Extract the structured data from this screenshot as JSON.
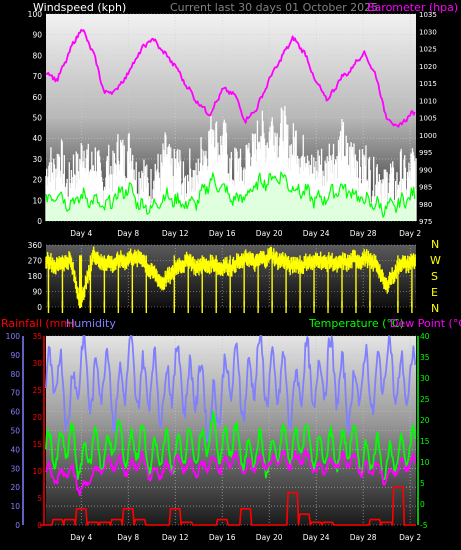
{
  "header": {
    "windspeed_label": "Windspeed (kph)",
    "title": "Current last 30 days 01 October 2025",
    "barometer_label": "Barometer (hpa)"
  },
  "colors": {
    "wind": "#ffffff",
    "gust": "#ffffff",
    "wind_avg": "#00ff00",
    "barometer": "#ff00ff",
    "direction": "#ffff00",
    "rainfall": "#ff0000",
    "humidity": "#8080ff",
    "temperature": "#00ff00",
    "dewpoint": "#ff00ff",
    "title": "#808080"
  },
  "legend": {
    "rainfall": "Rainfall (mm)",
    "humidity": "Humidity",
    "temperature": "Temperature (°C)",
    "dewpoint": "Dew Point (°C)"
  },
  "compass": [
    "N",
    "W",
    "S",
    "E",
    "N"
  ],
  "chart_data": [
    {
      "type": "line",
      "name": "wind",
      "x_tick_labels": [
        "Day 4",
        "Day 8",
        "Day 12",
        "Day 16",
        "Day 20",
        "Day 24",
        "Day 28",
        "Day 2"
      ],
      "x_range_days": [
        0,
        31.5
      ],
      "ylabel_left": "Windspeed (kph)",
      "ylabel_right": "Barometer (hpa)",
      "ylim_left": [
        0,
        100
      ],
      "ylim_right": [
        975,
        1035
      ],
      "y_ticks_left": [
        0,
        10,
        20,
        30,
        40,
        50,
        60,
        70,
        80,
        90,
        100
      ],
      "y_ticks_right": [
        975,
        980,
        985,
        990,
        995,
        1000,
        1005,
        1010,
        1015,
        1020,
        1025,
        1030,
        1035
      ],
      "grid": true,
      "series": [
        {
          "name": "Windspeed",
          "axis": "left",
          "x": [
            0,
            1,
            2,
            3,
            4,
            5,
            6,
            7,
            8,
            9,
            10,
            11,
            12,
            13,
            14,
            15,
            16,
            17,
            18,
            19,
            20,
            21,
            22,
            23,
            24,
            25,
            26,
            27,
            28,
            29,
            30,
            31
          ],
          "values": [
            22,
            30,
            18,
            32,
            28,
            20,
            30,
            34,
            22,
            18,
            30,
            26,
            20,
            24,
            44,
            38,
            24,
            28,
            40,
            42,
            44,
            36,
            34,
            24,
            28,
            36,
            32,
            26,
            22,
            18,
            20,
            24
          ]
        },
        {
          "name": "Wind average",
          "axis": "left",
          "x": [
            0,
            1,
            2,
            3,
            4,
            5,
            6,
            7,
            8,
            9,
            10,
            11,
            12,
            13,
            14,
            15,
            16,
            17,
            18,
            19,
            20,
            21,
            22,
            23,
            24,
            25,
            26,
            27,
            28,
            29,
            30,
            31
          ],
          "values": [
            10,
            14,
            8,
            12,
            10,
            6,
            12,
            16,
            8,
            6,
            12,
            10,
            8,
            10,
            20,
            16,
            10,
            12,
            18,
            20,
            22,
            16,
            14,
            10,
            12,
            16,
            14,
            10,
            8,
            6,
            8,
            12
          ]
        },
        {
          "name": "Barometer",
          "axis": "right",
          "x": [
            0,
            1,
            2,
            3,
            4,
            5,
            6,
            7,
            8,
            9,
            10,
            11,
            12,
            13,
            14,
            15,
            16,
            17,
            18,
            19,
            20,
            21,
            22,
            23,
            24,
            25,
            26,
            27,
            28,
            29,
            30,
            31
          ],
          "values": [
            1018,
            1016,
            1024,
            1031,
            1024,
            1012,
            1013,
            1018,
            1024,
            1028,
            1024,
            1020,
            1014,
            1009,
            1006,
            1013,
            1012,
            1004,
            1008,
            1016,
            1022,
            1028,
            1024,
            1015,
            1010,
            1016,
            1019,
            1024,
            1018,
            1005,
            1002,
            1006
          ]
        }
      ]
    },
    {
      "type": "line",
      "name": "wind_direction",
      "x_tick_labels": [
        "Day 4",
        "Day 8",
        "Day 12",
        "Day 16",
        "Day 20",
        "Day 24",
        "Day 28",
        "Day 2"
      ],
      "ylim": [
        0,
        360
      ],
      "y_ticks": [
        0,
        90,
        180,
        270,
        360
      ],
      "grid": true,
      "series": [
        {
          "name": "Wind direction",
          "x": [
            0,
            1,
            2,
            3,
            4,
            5,
            6,
            7,
            8,
            9,
            10,
            11,
            12,
            13,
            14,
            15,
            16,
            17,
            18,
            19,
            20,
            21,
            22,
            23,
            24,
            25,
            26,
            27,
            28,
            29,
            30,
            31
          ],
          "values": [
            270,
            240,
            280,
            20,
            300,
            250,
            260,
            280,
            290,
            200,
            140,
            220,
            270,
            230,
            250,
            230,
            240,
            280,
            260,
            300,
            270,
            240,
            250,
            270,
            260,
            250,
            270,
            280,
            260,
            120,
            240,
            260
          ]
        }
      ]
    },
    {
      "type": "line",
      "name": "temperature_humidity_rain",
      "x_tick_labels": [
        "Day 4",
        "Day 8",
        "Day 12",
        "Day 16",
        "Day 20",
        "Day 24",
        "Day 28",
        "Day 2"
      ],
      "ylim_humidity": [
        0,
        100
      ],
      "y_ticks_humidity": [
        0,
        10,
        20,
        30,
        40,
        50,
        60,
        70,
        80,
        90,
        100
      ],
      "ylim_rain": [
        0,
        35
      ],
      "y_ticks_rain": [
        0,
        5,
        10,
        15,
        20,
        25,
        30,
        35
      ],
      "ylim_temp": [
        -5,
        40
      ],
      "y_ticks_temp": [
        -5,
        0,
        5,
        10,
        15,
        20,
        25,
        30,
        35,
        40
      ],
      "grid": true,
      "series": [
        {
          "name": "Humidity",
          "axis": "humidity",
          "x": [
            0,
            1,
            2,
            3,
            4,
            5,
            6,
            7,
            8,
            9,
            10,
            11,
            12,
            13,
            14,
            15,
            16,
            17,
            18,
            19,
            20,
            21,
            22,
            23,
            24,
            25,
            26,
            27,
            28,
            29,
            30,
            31
          ],
          "values": [
            75,
            82,
            60,
            90,
            70,
            85,
            62,
            88,
            72,
            80,
            65,
            86,
            70,
            78,
            55,
            72,
            84,
            66,
            90,
            74,
            80,
            62,
            86,
            70,
            88,
            76,
            64,
            82,
            70,
            90,
            74,
            78
          ]
        },
        {
          "name": "Temperature",
          "axis": "temp",
          "x": [
            0,
            1,
            2,
            3,
            4,
            5,
            6,
            7,
            8,
            9,
            10,
            11,
            12,
            13,
            14,
            15,
            16,
            17,
            18,
            19,
            20,
            21,
            22,
            23,
            24,
            25,
            26,
            27,
            28,
            29,
            30,
            31
          ],
          "values": [
            14,
            12,
            16,
            9,
            15,
            11,
            17,
            12,
            16,
            10,
            14,
            11,
            15,
            12,
            18,
            13,
            16,
            11,
            14,
            10,
            15,
            13,
            17,
            11,
            14,
            12,
            16,
            10,
            13,
            9,
            12,
            14
          ]
        },
        {
          "name": "Dew Point",
          "axis": "temp",
          "x": [
            0,
            1,
            2,
            3,
            4,
            5,
            6,
            7,
            8,
            9,
            10,
            11,
            12,
            13,
            14,
            15,
            16,
            17,
            18,
            19,
            20,
            21,
            22,
            23,
            24,
            25,
            26,
            27,
            28,
            29,
            30,
            31
          ],
          "values": [
            8,
            6,
            9,
            3,
            7,
            9,
            10,
            8,
            11,
            7,
            8,
            10,
            9,
            8,
            10,
            9,
            11,
            8,
            10,
            9,
            11,
            10,
            12,
            8,
            9,
            10,
            11,
            8,
            9,
            6,
            9,
            10
          ]
        },
        {
          "name": "Rainfall",
          "axis": "rain",
          "x": [
            0,
            1,
            2,
            3,
            4,
            5,
            6,
            7,
            8,
            9,
            10,
            11,
            12,
            13,
            14,
            15,
            16,
            17,
            18,
            19,
            20,
            21,
            22,
            23,
            24,
            25,
            26,
            27,
            28,
            29,
            30,
            31
          ],
          "values": [
            0,
            1,
            1,
            3,
            0.5,
            0.5,
            1,
            3,
            1,
            0,
            0,
            3,
            0.5,
            0,
            0,
            1,
            0,
            3,
            0,
            0,
            0,
            6,
            2,
            0.5,
            0.5,
            0,
            0,
            0,
            1,
            0.5,
            7,
            0
          ]
        }
      ]
    }
  ]
}
